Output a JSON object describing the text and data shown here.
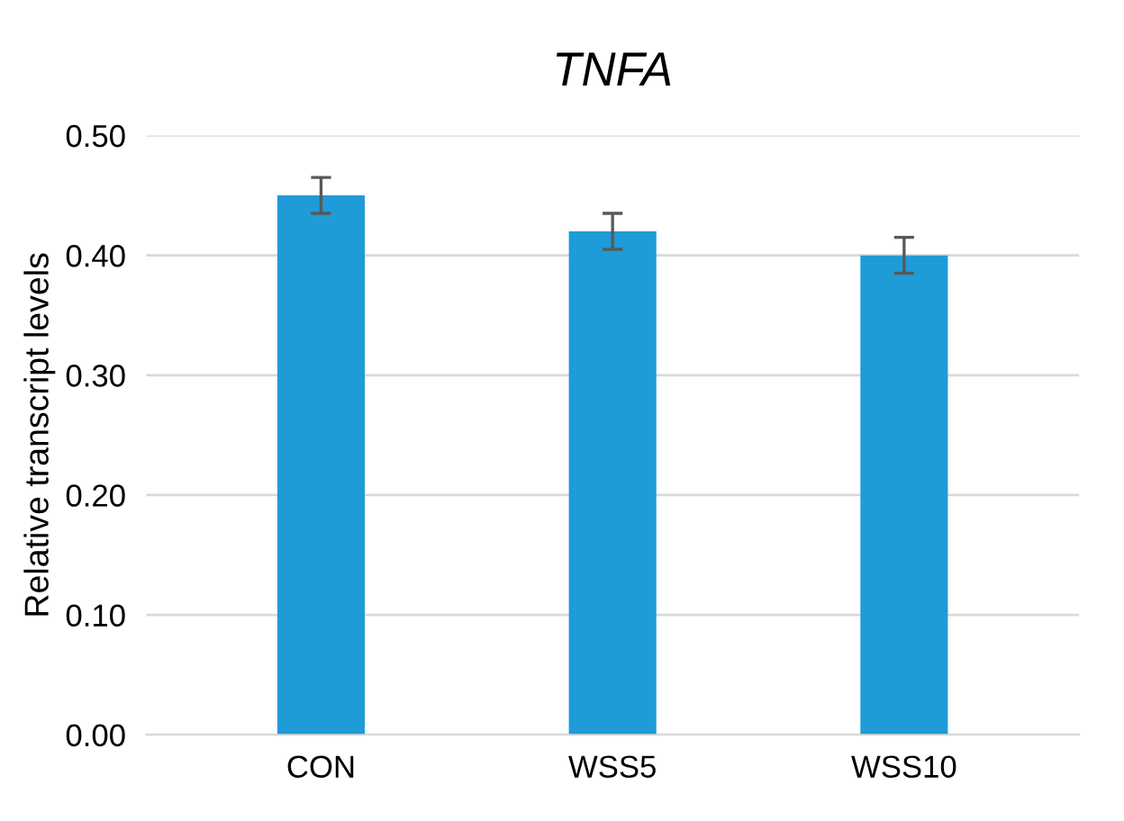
{
  "chart_data": {
    "type": "bar",
    "title": "TNFA",
    "ylabel": "Relative transcript levels",
    "categories": [
      "CON",
      "WSS5",
      "WSS10"
    ],
    "values": [
      0.45,
      0.42,
      0.4
    ],
    "errors": [
      0.015,
      0.015,
      0.015
    ],
    "color": "#1f9bd7",
    "ylim": [
      0,
      0.5
    ],
    "yticks": [
      {
        "value": 0,
        "label": "0.00"
      },
      {
        "value": 0.1,
        "label": "0.10"
      },
      {
        "value": 0.2,
        "label": "0.20"
      },
      {
        "value": 0.3,
        "label": "0.30"
      },
      {
        "value": 0.4,
        "label": "0.40"
      },
      {
        "value": 0.5,
        "label": "0.50"
      }
    ],
    "grid": "y",
    "legend": false
  }
}
